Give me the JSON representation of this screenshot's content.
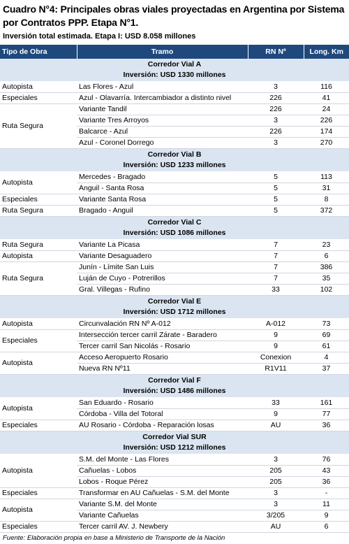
{
  "title": "Cuadro N°4: Principales obras viales proyectadas en Argentina por Sistema por Contratos PPP. Etapa N°1.",
  "subtitle": "Inversión total estimada. Etapa I: USD 8.058 millones",
  "table": {
    "header": [
      "Tipo de Obra",
      "Tramo",
      "RN Nº",
      "Long. Km"
    ],
    "sections": [
      {
        "name": "Corredor Vial A",
        "investment": "Inversión: USD 1330 millones",
        "rows": [
          [
            "Autopista",
            "Las Flores - Azul",
            3,
            116
          ],
          [
            "Especiales",
            "Azul - Olavarría. Intercambiador a distinto nivel",
            226,
            41
          ],
          [
            "Ruta Segura",
            "Variante Tandil",
            226,
            24
          ],
          [
            null,
            "Variante Tres Arroyos",
            3,
            226
          ],
          [
            null,
            "Balcarce - Azul",
            226,
            174
          ],
          [
            null,
            "Azul - Coronel Dorrego",
            3,
            270
          ]
        ]
      },
      {
        "name": "Corredor Vial B",
        "investment": "Inversión: USD 1233 millones",
        "rows": [
          [
            "Autopista",
            "Mercedes - Bragado",
            5,
            113
          ],
          [
            null,
            "Anguil - Santa Rosa",
            5,
            31
          ],
          [
            "Especiales",
            "Variante Santa Rosa",
            5,
            8
          ],
          [
            "Ruta Segura",
            "Bragado - Anguil",
            5,
            372
          ]
        ]
      },
      {
        "name": "Corredor Vial C",
        "investment": "Inversión: USD 1086 millones",
        "rows": [
          [
            "Ruta Segura",
            "Variante La Picasa",
            7,
            23
          ],
          [
            "Autopista",
            "Variante Desaguadero",
            7,
            6
          ],
          [
            "Ruta Segura",
            "Junín - Límite San Luis",
            7,
            386
          ],
          [
            null,
            "Luján de Cuyo - Potrerillos",
            7,
            35
          ],
          [
            null,
            "Gral. Villegas - Rufino",
            33,
            102
          ]
        ]
      },
      {
        "name": "Corredor Vial E",
        "investment": "Inversión: USD 1712 millones",
        "rows": [
          [
            "Autopista",
            "Circunvalación RN Nº A-012",
            "A-012",
            73
          ],
          [
            "Especiales",
            "Intersección tercer carril Zárate - Baradero",
            9,
            69
          ],
          [
            null,
            "Tercer carril San Nicolás - Rosario",
            9,
            61
          ],
          [
            "Autopista",
            "Acceso Aeropuerto Rosario",
            "Conexion",
            4
          ],
          [
            null,
            "Nueva RN Nº11",
            "R1V11",
            37
          ]
        ]
      },
      {
        "name": "Corredor Vial F",
        "investment": "Inversión: USD 1486 millones",
        "rows": [
          [
            "Autopista",
            "San Eduardo - Rosario",
            33,
            161
          ],
          [
            null,
            "Córdoba - Villa del Totoral",
            9,
            77
          ],
          [
            "Especiales",
            "AU Rosario - Córdoba - Reparación losas",
            "AU",
            36
          ]
        ]
      },
      {
        "name": "Corredor Vial SUR",
        "investment": "Inversión: USD 1212 millones",
        "rows": [
          [
            "Autopista",
            "S.M. del Monte - Las Flores",
            3,
            76
          ],
          [
            null,
            "Cañuelas - Lobos",
            205,
            43
          ],
          [
            null,
            "Lobos - Roque Pérez",
            205,
            36
          ],
          [
            "Especiales",
            "Transformar en AU Cañuelas - S.M. del Monte",
            3,
            "-"
          ],
          [
            "Autopista",
            "Variante S.M. del Monte",
            3,
            11
          ],
          [
            null,
            "Variante Cañuelas",
            "3/205",
            9
          ],
          [
            "Especiales",
            "Tercer carril AV. J. Newbery",
            "AU",
            6
          ]
        ]
      }
    ]
  },
  "footnote": "Fuente: Elaboración propia en base a Ministerio de Transporte de la Nación"
}
